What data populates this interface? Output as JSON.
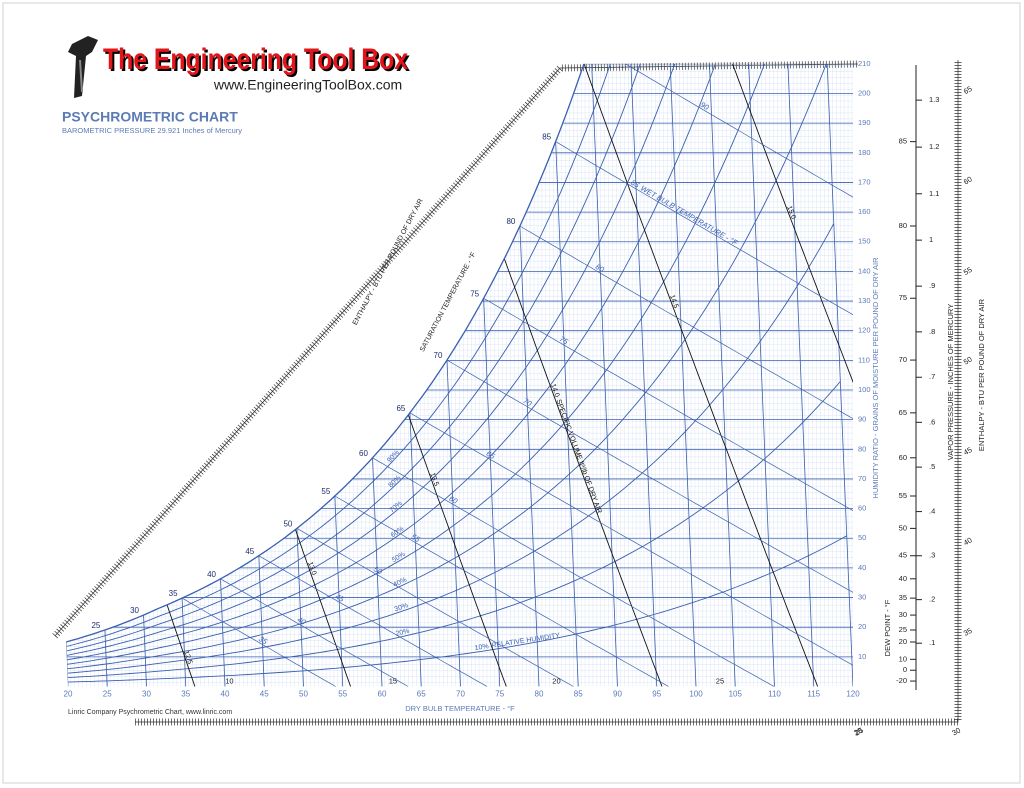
{
  "header": {
    "logo_title": "The Engineering Tool Box",
    "logo_url": "www.EngineeringToolBox.com",
    "chart_title": "PSYCHROMETRIC CHART",
    "subtitle": "BAROMETRIC PRESSURE 29.921 Inches of Mercury"
  },
  "chart_data": {
    "type": "psychrometric",
    "x_label": "DRY BULB TEMPERATURE - °F",
    "y_label": "HUMIDITY RATIO - GRAINS OF MOISTURE PER POUND OF DRY AIR",
    "xlim": [
      20,
      120
    ],
    "xticks": [
      20,
      25,
      30,
      35,
      40,
      45,
      50,
      55,
      60,
      65,
      70,
      75,
      80,
      85,
      90,
      95,
      100,
      105,
      110,
      115,
      120
    ],
    "ylim": [
      0,
      210
    ],
    "yticks": [
      10,
      20,
      30,
      40,
      50,
      60,
      70,
      80,
      90,
      100,
      110,
      120,
      130,
      140,
      150,
      160,
      170,
      180,
      190,
      200,
      210
    ],
    "grid": true,
    "color": "#3a5fb0",
    "relative_humidity": {
      "label": "RELATIVE HUMIDITY",
      "values": [
        10,
        20,
        30,
        40,
        50,
        60,
        70,
        80,
        90
      ],
      "value_labels": [
        "10%",
        "20%",
        "30%",
        "40%",
        "50%",
        "60%",
        "70%",
        "80%",
        "90%"
      ]
    },
    "saturation_temperature": {
      "label": "SATURATION TEMPERATURE - °F",
      "values": [
        25,
        30,
        35,
        40,
        45,
        50,
        55,
        60,
        65,
        70,
        75,
        80,
        85
      ]
    },
    "wet_bulb": {
      "label": "WET BULB TEMPERATURE - °F",
      "values": [
        35,
        40,
        45,
        50,
        55,
        60,
        65,
        70,
        75,
        80,
        85,
        90
      ]
    },
    "specific_volume": {
      "label": "SPECIFIC VOLUME ft³/lb OF DRY AIR",
      "values": [
        12.5,
        13.0,
        13.5,
        14.0,
        14.5,
        15.0
      ],
      "value_labels": [
        "12.5",
        "13.0",
        "13.5",
        "14.0",
        "14.5",
        "15.0"
      ]
    },
    "enthalpy": {
      "label": "ENTHALPY - BTU PER POUND OF DRY AIR",
      "values": [
        10,
        15,
        20,
        25,
        30,
        35,
        40,
        45,
        50,
        55,
        60,
        65
      ]
    },
    "dew_point": {
      "label": "DEW POINT - °F",
      "ticks": [
        -20,
        0,
        10,
        20,
        25,
        30,
        35,
        40,
        45,
        50,
        55,
        60,
        65,
        70,
        75,
        80,
        85
      ]
    },
    "vapor_pressure": {
      "label": "VAPOR PRESSURE - INCHES OF MERCURY",
      "ticks": [
        {
          "value": 0.1,
          "label": ".1"
        },
        {
          "value": 0.2,
          "label": ".2"
        },
        {
          "value": 0.3,
          "label": ".3"
        },
        {
          "value": 0.4,
          "label": ".4"
        },
        {
          "value": 0.5,
          "label": ".5"
        },
        {
          "value": 0.6,
          "label": ".6"
        },
        {
          "value": 0.7,
          "label": ".7"
        },
        {
          "value": 0.8,
          "label": ".8"
        },
        {
          "value": 0.9,
          "label": ".9"
        },
        1,
        1.1,
        1.2,
        1.3
      ]
    },
    "footer": "Linric Company Psychrometric Chart, www.linric.com"
  }
}
